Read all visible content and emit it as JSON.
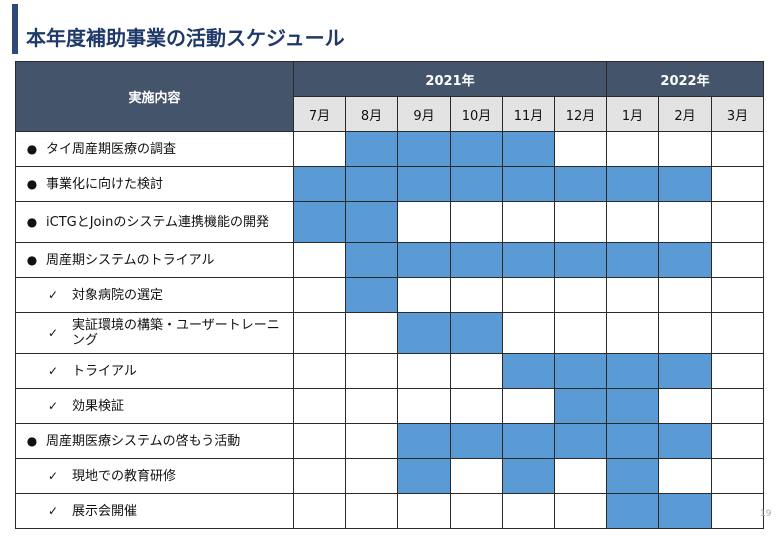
{
  "page": {
    "title": "本年度補助事業の活動スケジュール",
    "slide_number": "19"
  },
  "colors": {
    "accent_bar": "#2f4a7a",
    "header": "#44546a",
    "month_header": "#e3e3e3",
    "filled_cell": "#5b9bd5"
  },
  "table": {
    "content_header": "実施内容",
    "years": [
      {
        "label": "2021年",
        "span": 6
      },
      {
        "label": "2022年",
        "span": 3
      }
    ],
    "months": [
      "7月",
      "8月",
      "9月",
      "10月",
      "11月",
      "12月",
      "1月",
      "2月",
      "3月"
    ],
    "rows": [
      {
        "marker": "●",
        "type": "bullet",
        "label": "タイ周産期医療の調査",
        "active": [
          0,
          1,
          1,
          1,
          1,
          0,
          0,
          0,
          0
        ]
      },
      {
        "marker": "●",
        "type": "bullet",
        "label": "事業化に向けた検討",
        "active": [
          1,
          1,
          1,
          1,
          1,
          1,
          1,
          1,
          0
        ]
      },
      {
        "marker": "●",
        "type": "bullet",
        "label": "iCTGとJoinのシステム連携機能の開発",
        "active": [
          1,
          1,
          0,
          0,
          0,
          0,
          0,
          0,
          0
        ]
      },
      {
        "marker": "●",
        "type": "bullet",
        "label": "周産期システムのトライアル",
        "active": [
          0,
          1,
          1,
          1,
          1,
          1,
          1,
          1,
          0
        ]
      },
      {
        "marker": "✓",
        "type": "check",
        "label": "対象病院の選定",
        "active": [
          0,
          1,
          0,
          0,
          0,
          0,
          0,
          0,
          0
        ]
      },
      {
        "marker": "✓",
        "type": "check",
        "label": "実証環境の構築・ユーザートレーニング",
        "active": [
          0,
          0,
          1,
          1,
          0,
          0,
          0,
          0,
          0
        ]
      },
      {
        "marker": "✓",
        "type": "check",
        "label": "トライアル",
        "active": [
          0,
          0,
          0,
          0,
          1,
          1,
          1,
          1,
          0
        ]
      },
      {
        "marker": "✓",
        "type": "check",
        "label": "効果検証",
        "active": [
          0,
          0,
          0,
          0,
          0,
          1,
          1,
          0,
          0
        ]
      },
      {
        "marker": "●",
        "type": "bullet",
        "label": "周産期医療システムの啓もう活動",
        "active": [
          0,
          0,
          1,
          1,
          1,
          1,
          1,
          1,
          0
        ]
      },
      {
        "marker": "✓",
        "type": "check",
        "label": "現地での教育研修",
        "active": [
          0,
          0,
          1,
          0,
          1,
          0,
          1,
          0,
          0
        ]
      },
      {
        "marker": "✓",
        "type": "check",
        "label": "展示会開催",
        "active": [
          0,
          0,
          0,
          0,
          0,
          0,
          1,
          1,
          0
        ]
      }
    ]
  }
}
